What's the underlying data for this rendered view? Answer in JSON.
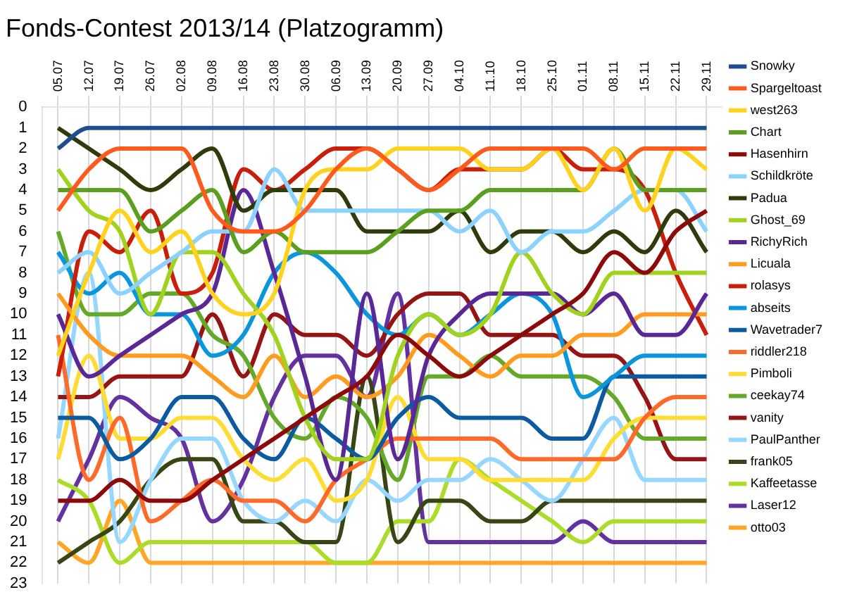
{
  "chart_data": {
    "type": "line",
    "title": "Fonds-Contest 2013/14 (Platzogramm)",
    "categories": [
      "05.07",
      "12.07",
      "19.07",
      "26.07",
      "02.08",
      "09.08",
      "16.08",
      "23.08",
      "30.08",
      "06.09",
      "13.09",
      "20.09",
      "27.09",
      "04.10",
      "11.10",
      "18.10",
      "25.10",
      "01.11",
      "08.11",
      "15.11",
      "22.11",
      "29.11"
    ],
    "ylim": [
      23,
      0
    ],
    "yticks": [
      0,
      1,
      2,
      3,
      4,
      5,
      6,
      7,
      8,
      9,
      10,
      11,
      12,
      13,
      14,
      15,
      16,
      17,
      18,
      19,
      20,
      21,
      22,
      23
    ],
    "grid": "x",
    "legend": "right",
    "marker": "none",
    "line_style": "solid",
    "series": [
      {
        "name": "Snowky",
        "color": "#1f4e8c",
        "values": [
          2,
          1,
          1,
          1,
          1,
          1,
          1,
          1,
          1,
          1,
          1,
          1,
          1,
          1,
          1,
          1,
          1,
          1,
          1,
          1,
          1,
          1
        ]
      },
      {
        "name": "Spargeltoast",
        "color": "#ff5a1e",
        "values": [
          5,
          3,
          2,
          2,
          2,
          5,
          6,
          6,
          5,
          3,
          2,
          3,
          4,
          3,
          2,
          2,
          2,
          2,
          3,
          2,
          2,
          2
        ]
      },
      {
        "name": "west263",
        "color": "#ffd21e",
        "values": [
          12,
          8,
          5,
          7,
          6,
          9,
          10,
          9,
          4,
          3,
          3,
          2,
          2,
          2,
          3,
          3,
          2,
          4,
          2,
          5,
          2,
          3
        ]
      },
      {
        "name": "Chart",
        "color": "#5aa01e",
        "values": [
          4,
          4,
          4,
          6,
          5,
          4,
          7,
          6,
          7,
          7,
          7,
          6,
          5,
          5,
          4,
          4,
          4,
          4,
          2,
          4,
          4,
          4
        ]
      },
      {
        "name": "Hasenhirn",
        "color": "#8c0a0a",
        "values": [
          19,
          19,
          18,
          19,
          19,
          18,
          17,
          16,
          15,
          14,
          13,
          11,
          12,
          13,
          12,
          11,
          10,
          9,
          7,
          8,
          6,
          5
        ]
      },
      {
        "name": "Schildkröte",
        "color": "#8cd2ff",
        "values": [
          8,
          7,
          9,
          8,
          7,
          6,
          6,
          3,
          5,
          5,
          5,
          5,
          5,
          6,
          5,
          7,
          6,
          6,
          5,
          4,
          4,
          6
        ]
      },
      {
        "name": "Padua",
        "color": "#2d3c0a",
        "values": [
          1,
          2,
          3,
          4,
          3,
          2,
          5,
          4,
          4,
          4,
          6,
          6,
          6,
          5,
          7,
          6,
          6,
          7,
          6,
          7,
          5,
          7
        ]
      },
      {
        "name": "Ghost_69",
        "color": "#a0d21e",
        "values": [
          3,
          5,
          6,
          10,
          7,
          7,
          9,
          11,
          15,
          17,
          17,
          12,
          10,
          11,
          10,
          7,
          9,
          10,
          8,
          8,
          8,
          8
        ]
      },
      {
        "name": "RichyRich",
        "color": "#5a2896",
        "values": [
          10,
          13,
          12,
          11,
          10,
          9,
          4,
          8,
          13,
          18,
          9,
          17,
          12,
          10,
          9,
          9,
          9,
          10,
          9,
          11,
          11,
          9
        ]
      },
      {
        "name": "Licuala",
        "color": "#ff9b1e",
        "values": [
          9,
          11,
          12,
          12,
          12,
          13,
          14,
          12,
          14,
          13,
          14,
          13,
          11,
          12,
          13,
          12,
          12,
          11,
          11,
          10,
          10,
          10
        ]
      },
      {
        "name": "rolasys",
        "color": "#c81e0a",
        "values": [
          13,
          6,
          7,
          5,
          9,
          8,
          3,
          4,
          3,
          2,
          2,
          3,
          4,
          3,
          3,
          3,
          2,
          3,
          3,
          4,
          8,
          11
        ]
      },
      {
        "name": "abseits",
        "color": "#0a96dc",
        "values": [
          7,
          9,
          8,
          10,
          10,
          12,
          11,
          8,
          7,
          8,
          10,
          11,
          10,
          11,
          10,
          9,
          10,
          14,
          13,
          12,
          12,
          12
        ]
      },
      {
        "name": "Wavetrader7",
        "color": "#0c5aa0",
        "values": [
          15,
          15,
          17,
          16,
          14,
          14,
          16,
          17,
          15,
          16,
          17,
          15,
          14,
          15,
          15,
          15,
          16,
          16,
          13,
          13,
          13,
          13
        ]
      },
      {
        "name": "riddler218",
        "color": "#ff6a28",
        "values": [
          11,
          18,
          15,
          20,
          19,
          18,
          19,
          19,
          20,
          18,
          17,
          16,
          16,
          16,
          16,
          17,
          17,
          17,
          17,
          15,
          14,
          14
        ]
      },
      {
        "name": "Pimboli",
        "color": "#ffdc32",
        "values": [
          17,
          12,
          16,
          16,
          15,
          15,
          17,
          18,
          17,
          19,
          18,
          14,
          17,
          17,
          18,
          18,
          18,
          18,
          16,
          15,
          15,
          15
        ]
      },
      {
        "name": "ceekay74",
        "color": "#64aa28",
        "values": [
          6,
          10,
          10,
          9,
          9,
          11,
          12,
          15,
          16,
          14,
          15,
          18,
          13,
          13,
          12,
          13,
          13,
          13,
          14,
          16,
          16,
          16
        ]
      },
      {
        "name": "vanity",
        "color": "#961414",
        "values": [
          14,
          14,
          13,
          13,
          13,
          10,
          13,
          10,
          11,
          11,
          12,
          10,
          9,
          9,
          11,
          11,
          11,
          12,
          12,
          14,
          17,
          17
        ]
      },
      {
        "name": "PaulPanther",
        "color": "#96d7ff",
        "values": [
          16,
          8,
          21,
          18,
          16,
          16,
          19,
          20,
          19,
          20,
          18,
          19,
          18,
          18,
          17,
          18,
          19,
          17,
          15,
          18,
          18,
          18
        ]
      },
      {
        "name": "frank05",
        "color": "#374614",
        "values": [
          22,
          21,
          20,
          18,
          17,
          17,
          20,
          20,
          21,
          21,
          13,
          21,
          19,
          19,
          20,
          20,
          19,
          19,
          19,
          19,
          19,
          19
        ]
      },
      {
        "name": "Kaffeetasse",
        "color": "#aadc28",
        "values": [
          18,
          19,
          22,
          21,
          21,
          21,
          21,
          21,
          21,
          22,
          22,
          20,
          20,
          17,
          18,
          19,
          20,
          21,
          20,
          20,
          20,
          20
        ]
      },
      {
        "name": "Laser12",
        "color": "#6432a0",
        "values": [
          20,
          17,
          14,
          15,
          16,
          20,
          18,
          14,
          12,
          12,
          14,
          9,
          21,
          21,
          21,
          21,
          21,
          20,
          21,
          21,
          21,
          21
        ]
      },
      {
        "name": "otto03",
        "color": "#ffa528",
        "values": [
          21,
          22,
          19,
          22,
          22,
          22,
          22,
          22,
          22,
          22,
          22,
          22,
          22,
          22,
          22,
          22,
          22,
          22,
          22,
          22,
          22,
          22
        ]
      }
    ]
  }
}
